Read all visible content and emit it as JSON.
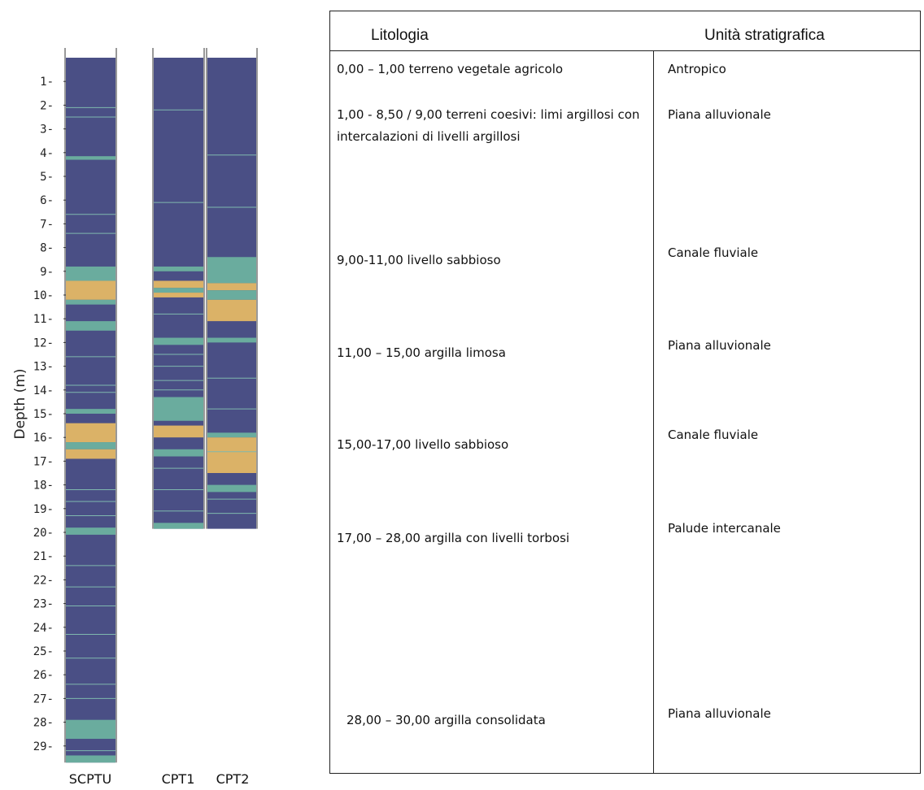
{
  "log_chart": {
    "ylabel": "Depth (m)",
    "depth_ticks": [
      1,
      2,
      3,
      4,
      5,
      6,
      7,
      8,
      9,
      10,
      11,
      12,
      13,
      14,
      15,
      16,
      17,
      18,
      19,
      20,
      21,
      22,
      23,
      24,
      25,
      26,
      27,
      28,
      29
    ],
    "columns": [
      {
        "name": "SCPTU",
        "max_depth": 29.7,
        "layers": [
          [
            0.0,
            4.15,
            "clay"
          ],
          [
            4.15,
            4.3,
            "silt"
          ],
          [
            4.3,
            8.8,
            "clay"
          ],
          [
            8.8,
            9.4,
            "silt"
          ],
          [
            9.4,
            10.2,
            "sand"
          ],
          [
            10.2,
            10.4,
            "silt"
          ],
          [
            10.4,
            11.1,
            "clay"
          ],
          [
            11.1,
            11.5,
            "silt"
          ],
          [
            11.5,
            14.8,
            "clay"
          ],
          [
            14.8,
            15.0,
            "silt"
          ],
          [
            15.0,
            15.4,
            "clay"
          ],
          [
            15.4,
            16.2,
            "sand"
          ],
          [
            16.2,
            16.5,
            "silt"
          ],
          [
            16.5,
            16.9,
            "sand"
          ],
          [
            16.9,
            19.8,
            "clay"
          ],
          [
            19.8,
            20.1,
            "silt"
          ],
          [
            20.1,
            27.9,
            "clay"
          ],
          [
            27.9,
            28.7,
            "silt"
          ],
          [
            28.7,
            29.4,
            "clay"
          ],
          [
            29.4,
            29.7,
            "silt"
          ]
        ]
      },
      {
        "name": "CPT1",
        "max_depth": 19.85,
        "layers": [
          [
            0.0,
            8.8,
            "clay"
          ],
          [
            8.8,
            9.0,
            "silt"
          ],
          [
            9.0,
            9.4,
            "clay"
          ],
          [
            9.4,
            9.7,
            "sand"
          ],
          [
            9.7,
            9.9,
            "silt"
          ],
          [
            9.9,
            10.1,
            "sand"
          ],
          [
            10.1,
            11.8,
            "clay"
          ],
          [
            11.8,
            12.1,
            "silt"
          ],
          [
            12.1,
            14.3,
            "clay"
          ],
          [
            14.3,
            15.3,
            "silt"
          ],
          [
            15.3,
            15.5,
            "clay"
          ],
          [
            15.5,
            16.0,
            "sand"
          ],
          [
            16.0,
            16.5,
            "clay"
          ],
          [
            16.5,
            16.8,
            "silt"
          ],
          [
            16.8,
            19.6,
            "clay"
          ],
          [
            19.6,
            19.85,
            "silt"
          ]
        ]
      },
      {
        "name": "CPT2",
        "max_depth": 19.85,
        "layers": [
          [
            0.0,
            8.4,
            "clay"
          ],
          [
            8.4,
            9.5,
            "silt"
          ],
          [
            9.5,
            9.8,
            "sand"
          ],
          [
            9.8,
            10.2,
            "silt"
          ],
          [
            10.2,
            11.1,
            "sand"
          ],
          [
            11.1,
            11.8,
            "clay"
          ],
          [
            11.8,
            12.0,
            "silt"
          ],
          [
            12.0,
            15.8,
            "clay"
          ],
          [
            15.8,
            16.0,
            "silt"
          ],
          [
            16.0,
            17.5,
            "sand"
          ],
          [
            17.5,
            18.0,
            "clay"
          ],
          [
            18.0,
            18.3,
            "silt"
          ],
          [
            18.3,
            19.85,
            "clay"
          ]
        ]
      }
    ],
    "thin_lines": [
      [
        0,
        [
          2.1,
          2.5,
          6.6,
          7.4,
          12.6,
          13.8,
          14.1,
          18.2,
          18.7,
          19.3,
          21.4,
          22.3,
          23.1,
          24.3,
          25.3,
          26.4,
          27.0,
          29.2
        ]
      ],
      [
        1,
        [
          2.2,
          6.1,
          10.8,
          12.5,
          13.0,
          13.6,
          14.0,
          17.3,
          18.2,
          19.1
        ]
      ],
      [
        2,
        [
          4.1,
          6.3,
          13.5,
          14.8,
          16.6,
          18.6,
          19.2
        ]
      ]
    ],
    "colors": {
      "clay": "#4a4f85",
      "silt": "#6aac9e",
      "sand": "#dbb267"
    }
  },
  "table": {
    "headers": {
      "lito": "Litologia",
      "unit": "Unità stratigrafica"
    },
    "rows": [
      {
        "lito": "0,00 – 1,00  terreno vegetale agricolo",
        "unit": "Antropico"
      },
      {
        "lito": "1,00 - 8,50 / 9,00   terreni coesivi: limi argillosi con intercalazioni di livelli argillosi",
        "unit": "Piana alluvionale"
      },
      {
        "lito": "9,00-11,00  livello sabbioso",
        "unit": "Canale fluviale"
      },
      {
        "lito": "11,00 – 15,00 argilla limosa",
        "unit": "Piana alluvionale"
      },
      {
        "lito": "15,00-17,00 livello sabbioso",
        "unit": "Canale fluviale"
      },
      {
        "lito": "17,00 – 28,00 argilla con livelli torbosi",
        "unit": "Palude intercanale"
      },
      {
        "lito": "28,00 – 30,00 argilla consolidata",
        "unit": "Piana alluvionale"
      }
    ]
  }
}
